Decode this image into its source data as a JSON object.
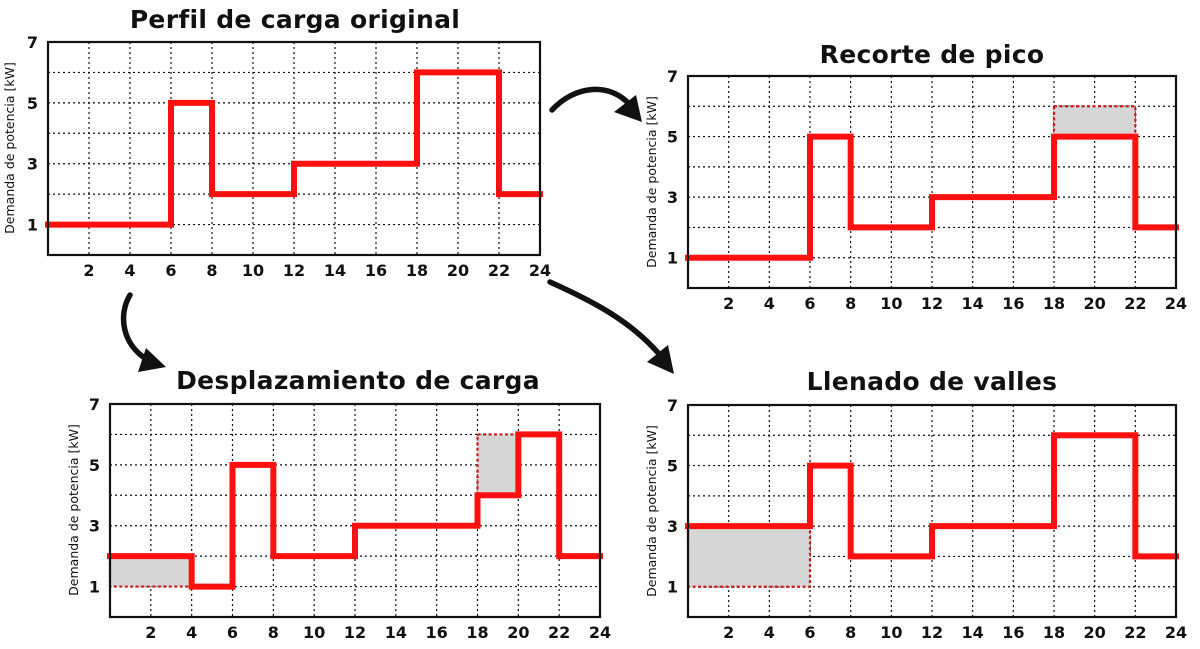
{
  "colors": {
    "line": "#ff1010",
    "shade": "#d6d6d6",
    "shade_border": "#c8191c",
    "frame": "#111111"
  },
  "chart_data": [
    {
      "type": "line",
      "title": "Perfil de carga original",
      "ylabel": "Demanda de potencia [kW]",
      "xlim": [
        0,
        24
      ],
      "ylim": [
        0,
        7
      ],
      "x_ticks": [
        2,
        4,
        6,
        8,
        10,
        12,
        14,
        16,
        18,
        20,
        22,
        24
      ],
      "y_ticks": [
        1,
        3,
        5,
        7
      ],
      "grid": true,
      "series": [
        {
          "step": "post",
          "x": [
            0,
            6,
            8,
            12,
            18,
            22,
            24
          ],
          "y": [
            1,
            5,
            2,
            3,
            6,
            2,
            2
          ]
        }
      ],
      "shaded_regions": []
    },
    {
      "type": "line",
      "title": "Recorte de pico",
      "ylabel": "Demanda de potencia [kW]",
      "xlim": [
        0,
        24
      ],
      "ylim": [
        0,
        7
      ],
      "x_ticks": [
        2,
        4,
        6,
        8,
        10,
        12,
        14,
        16,
        18,
        20,
        22,
        24
      ],
      "y_ticks": [
        1,
        3,
        5,
        7
      ],
      "grid": true,
      "series": [
        {
          "step": "post",
          "x": [
            0,
            6,
            8,
            12,
            18,
            22,
            24
          ],
          "y": [
            1,
            5,
            2,
            3,
            5,
            2,
            2
          ]
        }
      ],
      "shaded_regions": [
        {
          "x0": 18,
          "x1": 22,
          "y0": 5,
          "y1": 6
        }
      ]
    },
    {
      "type": "line",
      "title": "Desplazamiento de carga",
      "ylabel": "Demanda de potencia [kW]",
      "xlim": [
        0,
        24
      ],
      "ylim": [
        0,
        7
      ],
      "x_ticks": [
        2,
        4,
        6,
        8,
        10,
        12,
        14,
        16,
        18,
        20,
        22,
        24
      ],
      "y_ticks": [
        1,
        3,
        5,
        7
      ],
      "grid": true,
      "series": [
        {
          "step": "post",
          "x": [
            0,
            4,
            6,
            8,
            12,
            18,
            20,
            22,
            24
          ],
          "y": [
            2,
            1,
            5,
            2,
            3,
            4,
            6,
            2,
            2
          ]
        }
      ],
      "shaded_regions": [
        {
          "x0": 0,
          "x1": 4,
          "y0": 1,
          "y1": 2
        },
        {
          "x0": 18,
          "x1": 20,
          "y0": 4,
          "y1": 6
        }
      ]
    },
    {
      "type": "line",
      "title": "Llenado de valles",
      "ylabel": "Demanda de potencia [kW]",
      "xlim": [
        0,
        24
      ],
      "ylim": [
        0,
        7
      ],
      "x_ticks": [
        2,
        4,
        6,
        8,
        10,
        12,
        14,
        16,
        18,
        20,
        22,
        24
      ],
      "y_ticks": [
        1,
        3,
        5,
        7
      ],
      "grid": true,
      "series": [
        {
          "step": "post",
          "x": [
            0,
            6,
            8,
            12,
            18,
            22,
            24
          ],
          "y": [
            3,
            5,
            2,
            3,
            6,
            2,
            2
          ]
        }
      ],
      "shaded_regions": [
        {
          "x0": 0,
          "x1": 6,
          "y0": 1,
          "y1": 3
        }
      ]
    }
  ]
}
